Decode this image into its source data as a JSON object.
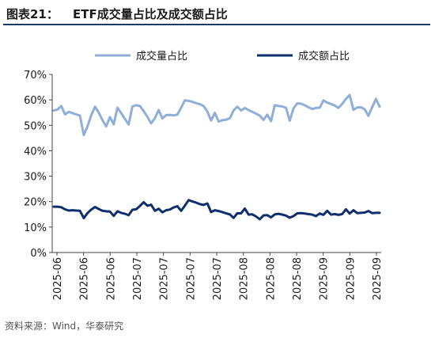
{
  "figure": {
    "label": "图表21：",
    "title": "ETF成交量占比及成交额占比"
  },
  "source_note": "资料来源：Wind，华泰研究",
  "colors": {
    "volume_line": "#8FAFD8",
    "amount_line": "#0E2F6E",
    "axis": "#444444",
    "title_rule": "#1f3a5f"
  },
  "chart_data": {
    "type": "line",
    "title": "",
    "xlabel": "",
    "ylabel": "",
    "ylim": [
      0,
      70
    ],
    "yticks": [
      "0%",
      "10%",
      "20%",
      "30%",
      "40%",
      "50%",
      "60%",
      "70%"
    ],
    "grid": false,
    "legend_position": "top",
    "x_tick_labels": [
      "2025-06",
      "2025-06",
      "2025-06",
      "2025-07",
      "2025-07",
      "2025-07",
      "2025-07",
      "2025-08",
      "2025-08",
      "2025-08",
      "2025-09",
      "2025-09",
      "2025-09"
    ],
    "series": [
      {
        "name": "成交量占比",
        "color": "#8FAFD8",
        "values": [
          55.8,
          56.2,
          57.6,
          54.3,
          55.3,
          54.8,
          54.3,
          53.8,
          46.2,
          49.5,
          54.0,
          57.3,
          55.0,
          52.0,
          49.6,
          53.2,
          50.4,
          56.9,
          54.8,
          52.5,
          50.3,
          57.4,
          57.9,
          57.6,
          55.6,
          53.3,
          50.8,
          52.8,
          56.0,
          52.7,
          54.0,
          54.1,
          53.9,
          54.2,
          56.9,
          59.8,
          59.6,
          59.2,
          58.7,
          58.3,
          57.6,
          55.4,
          51.9,
          54.9,
          51.5,
          52.0,
          52.2,
          52.8,
          55.8,
          57.3,
          55.8,
          56.8,
          56.0,
          55.3,
          54.6,
          53.8,
          52.1,
          54.2,
          51.6,
          57.9,
          57.6,
          57.4,
          56.9,
          51.8,
          56.7,
          58.6,
          58.5,
          57.9,
          57.1,
          56.4,
          56.8,
          56.9,
          59.8,
          58.9,
          58.4,
          57.8,
          56.8,
          58.4,
          60.4,
          61.9,
          56.1,
          57.0,
          57.1,
          56.3,
          53.7,
          57.1,
          60.4,
          57.3
        ]
      },
      {
        "name": "成交额占比",
        "color": "#0E2F6E",
        "values": [
          18.0,
          18.0,
          17.8,
          17.0,
          16.5,
          16.6,
          16.5,
          16.4,
          13.5,
          15.5,
          16.9,
          17.9,
          17.1,
          16.4,
          16.2,
          16.1,
          14.4,
          16.2,
          15.6,
          15.2,
          14.7,
          16.8,
          17.0,
          18.3,
          19.8,
          18.4,
          18.8,
          16.4,
          17.2,
          15.8,
          16.6,
          16.9,
          17.7,
          18.2,
          16.4,
          18.4,
          20.6,
          20.1,
          19.6,
          19.0,
          18.7,
          19.3,
          15.9,
          16.6,
          16.3,
          15.9,
          15.4,
          15.0,
          13.6,
          15.4,
          15.4,
          17.3,
          14.9,
          15.0,
          14.2,
          13.1,
          14.6,
          14.7,
          13.8,
          15.0,
          15.2,
          14.9,
          14.5,
          13.7,
          14.3,
          15.4,
          15.5,
          15.3,
          15.1,
          14.9,
          14.3,
          15.3,
          14.8,
          16.4,
          14.9,
          15.1,
          14.8,
          15.1,
          17.0,
          15.3,
          16.6,
          15.5,
          15.6,
          15.7,
          16.3,
          15.5,
          15.6,
          15.6
        ]
      }
    ]
  }
}
